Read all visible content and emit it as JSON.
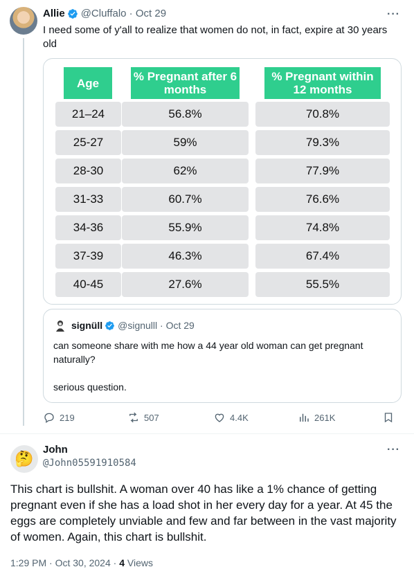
{
  "post": {
    "author_name": "Allie",
    "handle": "@Cluffalo",
    "date": "Oct 29",
    "more": "···",
    "text": "I need some of y'all to realize that women do not, in fact, expire at 30 years old"
  },
  "chart_data": {
    "type": "table",
    "columns": [
      "Age",
      "% Pregnant after 6 months",
      "% Pregnant within 12 months"
    ],
    "rows": [
      [
        "21–24",
        "56.8%",
        "70.8%"
      ],
      [
        "25-27",
        "59%",
        "79.3%"
      ],
      [
        "28-30",
        "62%",
        "77.9%"
      ],
      [
        "31-33",
        "60.7%",
        "76.6%"
      ],
      [
        "34-36",
        "55.9%",
        "74.8%"
      ],
      [
        "37-39",
        "46.3%",
        "67.4%"
      ],
      [
        "40-45",
        "27.6%",
        "55.5%"
      ]
    ],
    "header_color": "#2fce8e",
    "cell_color": "#e3e4e6"
  },
  "quote": {
    "author_name": "signüll",
    "handle": "@signulll",
    "date": "Oct 29",
    "text": "can someone share with me how a 44 year old woman can get pregnant naturally?",
    "text2": "serious question.",
    "avatar_icon": "shakespeare-avatar-icon"
  },
  "actions": {
    "replies": "219",
    "reposts": "507",
    "likes": "4.4K",
    "views": "261K"
  },
  "reply": {
    "author_name": "John",
    "handle": "@John05591910584",
    "avatar_emoji": "🤔",
    "text": "This chart is bullshit. A woman over 40 has like a 1% chance of getting pregnant even if she has a load shot in her every day for a year. At 45 the eggs are completely unviable and few and far between in the vast majority of women. Again, this chart is bullshit.",
    "time": "1:29 PM · Oct 30, 2024 · ",
    "views_count": "4",
    "views_label": " Views",
    "more": "···"
  },
  "colors": {
    "verified": "#1d9bf0",
    "muted": "#536471",
    "border": "#cfd9de"
  }
}
